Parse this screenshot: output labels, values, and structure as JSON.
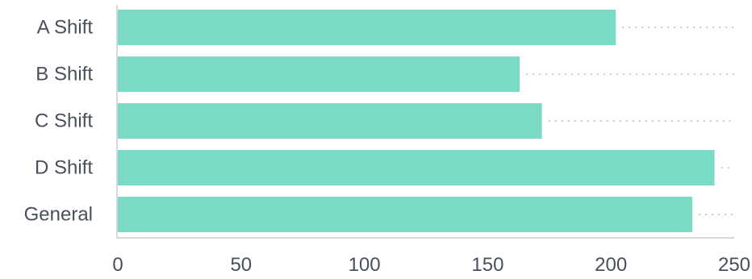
{
  "chart_data": {
    "type": "bar",
    "orientation": "horizontal",
    "categories": [
      "A Shift",
      "B Shift",
      "C Shift",
      "D Shift",
      "General"
    ],
    "values": [
      202,
      163,
      172,
      242,
      233
    ],
    "xlim": [
      0,
      250
    ],
    "xticks": [
      "0",
      "50",
      "100",
      "150",
      "200",
      "250"
    ],
    "title": "",
    "xlabel": "",
    "ylabel": "",
    "grid": false,
    "bar_color": "#79dbc3",
    "dotted_guide_color": "#c8ccd2"
  }
}
